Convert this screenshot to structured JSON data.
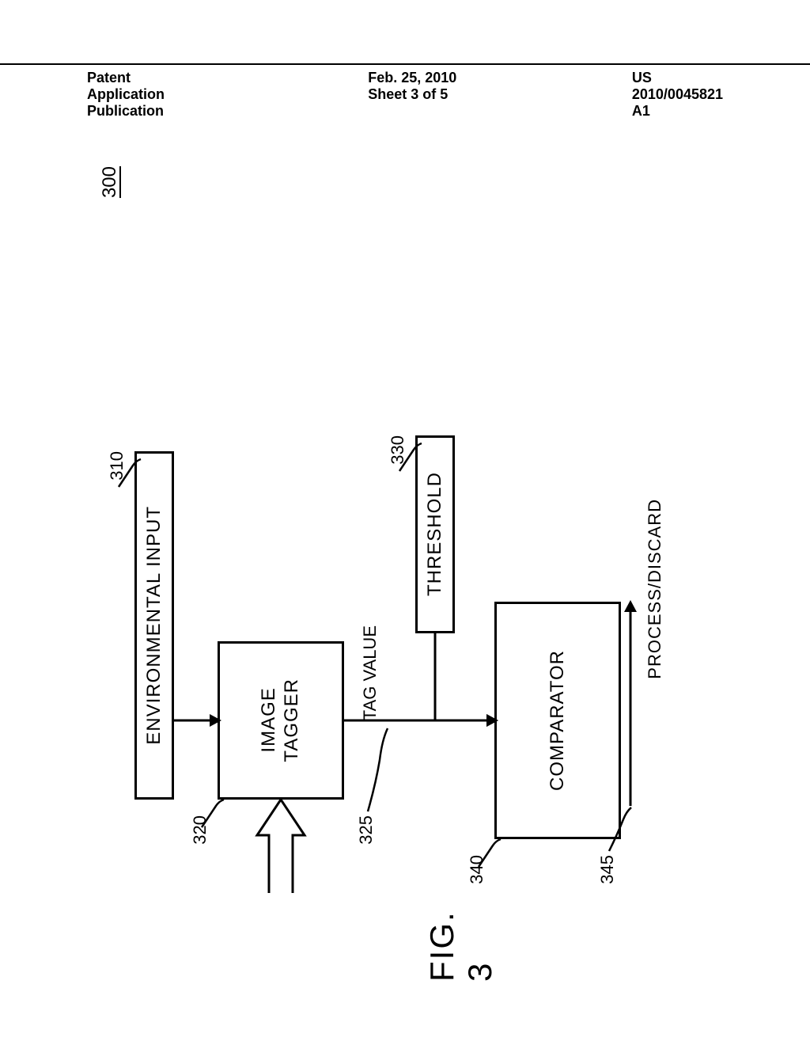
{
  "header": {
    "left": "Patent Application Publication",
    "center": "Feb. 25, 2010  Sheet 3 of 5",
    "right": "US 2010/0045821 A1"
  },
  "diagram": {
    "figure_ref": "300",
    "figure_label": "FIG. 3",
    "blocks": {
      "env_input": {
        "label": "ENVIRONMENTAL INPUT",
        "ref": "310"
      },
      "image_tagger": {
        "label": "IMAGE\nTAGGER",
        "ref": "320"
      },
      "threshold": {
        "label": "THRESHOLD",
        "ref": "330"
      },
      "comparator": {
        "label": "COMPARATOR",
        "ref": "340"
      }
    },
    "arrows": {
      "tag_value": {
        "label": "TAG VALUE",
        "ref": "325"
      },
      "process_discard": {
        "label": "PROCESS/DISCARD",
        "ref": "345"
      }
    },
    "style": {
      "stroke": "#000000",
      "stroke_width": 3,
      "font_size_box": 24,
      "font_size_ref": 22,
      "font_size_fig": 42
    }
  }
}
